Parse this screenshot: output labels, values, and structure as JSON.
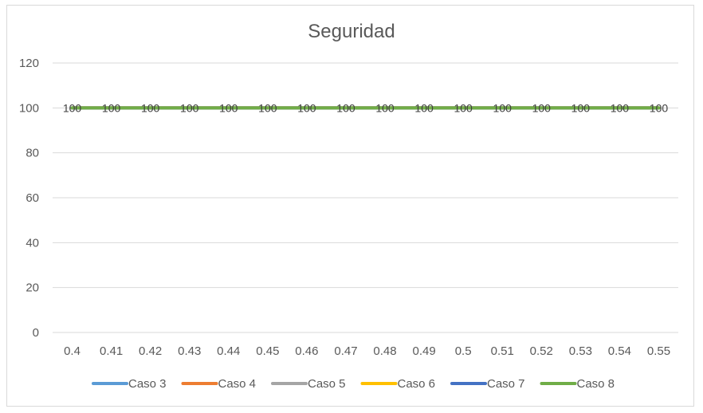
{
  "chart_data": {
    "type": "line",
    "title": "Seguridad",
    "xlabel": "",
    "ylabel": "",
    "categories": [
      "0.4",
      "0.41",
      "0.42",
      "0.43",
      "0.44",
      "0.45",
      "0.46",
      "0.47",
      "0.48",
      "0.49",
      "0.5",
      "0.51",
      "0.52",
      "0.53",
      "0.54",
      "0.55"
    ],
    "ylim": [
      0,
      120
    ],
    "yticks": [
      "0",
      "20",
      "40",
      "60",
      "80",
      "100",
      "120"
    ],
    "grid": true,
    "legend_position": "bottom",
    "series": [
      {
        "name": "Caso 3",
        "color": "#5B9BD5",
        "values": [
          100,
          100,
          100,
          100,
          100,
          100,
          100,
          100,
          100,
          100,
          100,
          100,
          100,
          100,
          100,
          100
        ]
      },
      {
        "name": "Caso 4",
        "color": "#ED7D31",
        "values": [
          100,
          100,
          100,
          100,
          100,
          100,
          100,
          100,
          100,
          100,
          100,
          100,
          100,
          100,
          100,
          100
        ]
      },
      {
        "name": "Caso 5",
        "color": "#A5A5A5",
        "values": [
          100,
          100,
          100,
          100,
          100,
          100,
          100,
          100,
          100,
          100,
          100,
          100,
          100,
          100,
          100,
          100
        ]
      },
      {
        "name": "Caso 6",
        "color": "#FFC000",
        "values": [
          100,
          100,
          100,
          100,
          100,
          100,
          100,
          100,
          100,
          100,
          100,
          100,
          100,
          100,
          100,
          100
        ]
      },
      {
        "name": "Caso 7",
        "color": "#4472C4",
        "values": [
          100,
          100,
          100,
          100,
          100,
          100,
          100,
          100,
          100,
          100,
          100,
          100,
          100,
          100,
          100,
          100
        ]
      },
      {
        "name": "Caso 8",
        "color": "#70AD47",
        "values": [
          100,
          100,
          100,
          100,
          100,
          100,
          100,
          100,
          100,
          100,
          100,
          100,
          100,
          100,
          100,
          100
        ]
      }
    ],
    "data_labels": [
      "100",
      "100",
      "100",
      "100",
      "100",
      "100",
      "100",
      "100",
      "100",
      "100",
      "100",
      "100",
      "100",
      "100",
      "100",
      "100"
    ]
  }
}
